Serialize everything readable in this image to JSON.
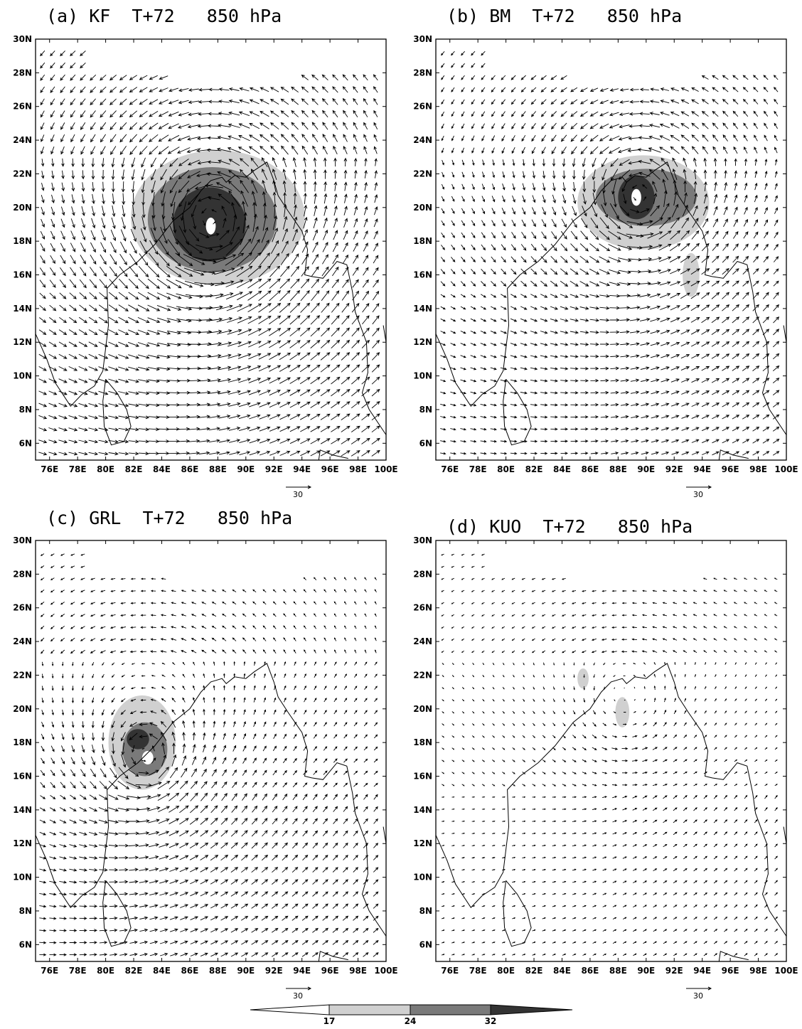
{
  "panels": [
    {
      "title": "(a) KF  T+72   850 hPa",
      "reference_vector": "30"
    },
    {
      "title": "(b) BM  T+72   850 hPa",
      "reference_vector": "30"
    },
    {
      "title": "(c) GRL  T+72   850 hPa",
      "reference_vector": "30"
    },
    {
      "title": "(d) KUO  T+72   850 hPa",
      "reference_vector": "30"
    }
  ],
  "lat_labels": [
    "30N",
    "28N",
    "26N",
    "24N",
    "22N",
    "20N",
    "18N",
    "16N",
    "14N",
    "12N",
    "10N",
    "8N",
    "6N"
  ],
  "lon_labels": [
    "76E",
    "78E",
    "80E",
    "82E",
    "84E",
    "86E",
    "88E",
    "90E",
    "92E",
    "94E",
    "96E",
    "98E",
    "100E"
  ],
  "colorbar": {
    "labels": [
      "17",
      "24",
      "32"
    ]
  }
}
